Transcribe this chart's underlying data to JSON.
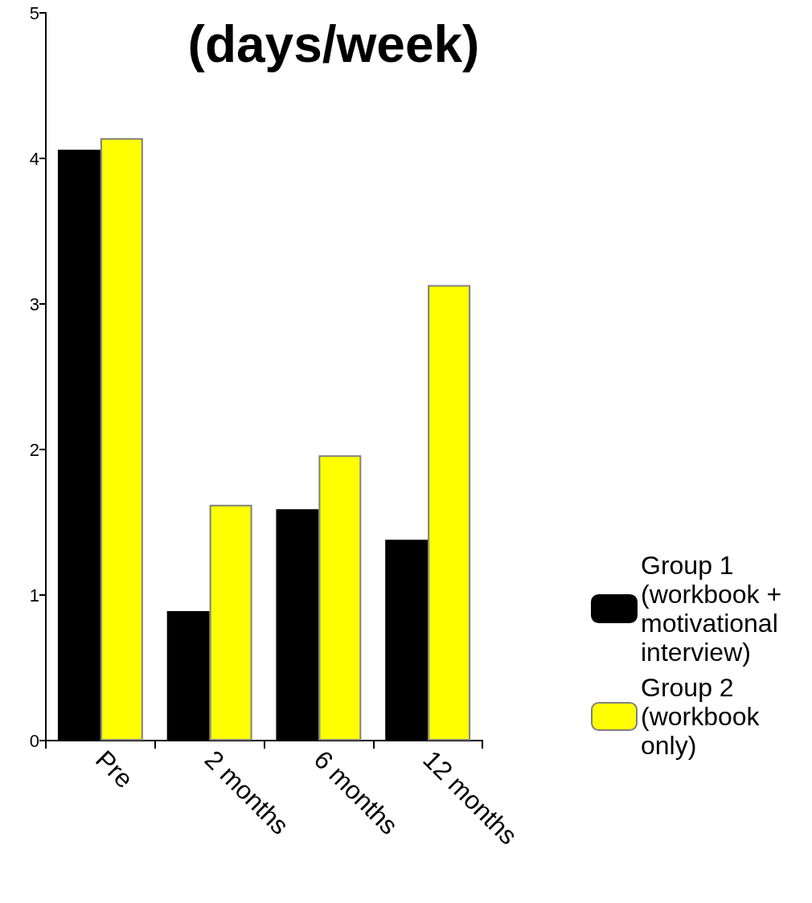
{
  "chart_data": {
    "type": "bar",
    "title": "(days/week)",
    "categories": [
      "Pre",
      "2 months",
      "6 months",
      "12 months"
    ],
    "series": [
      {
        "name": "Group 1 (workbook + motivational interview)",
        "color": "#000000",
        "values": [
          4.06,
          0.89,
          1.59,
          1.38
        ]
      },
      {
        "name": "Group 2 (workbook only)",
        "color": "#ffff00",
        "values": [
          4.14,
          1.62,
          1.96,
          3.13
        ]
      }
    ],
    "ylim": [
      0,
      5
    ],
    "yticks": [
      0,
      1,
      2,
      3,
      4,
      5
    ],
    "grid": false,
    "legend": "right"
  }
}
